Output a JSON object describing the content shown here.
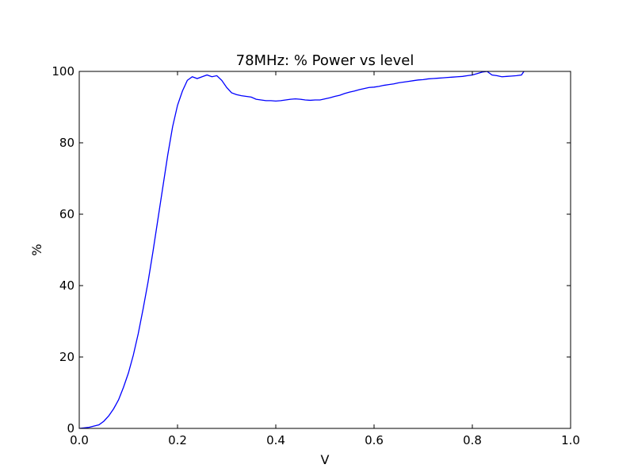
{
  "chart_data": {
    "type": "line",
    "title": "78MHz: % Power vs level",
    "xlabel": "V",
    "ylabel": "%",
    "xlim": [
      0.0,
      1.0
    ],
    "ylim": [
      0,
      100
    ],
    "xticks": [
      "0.0",
      "0.2",
      "0.4",
      "0.6",
      "0.8",
      "1.0"
    ],
    "yticks": [
      "0",
      "20",
      "40",
      "60",
      "80",
      "100"
    ],
    "grid": false,
    "line_color": "#0000ff",
    "series": [
      {
        "x": [
          0.0,
          0.02,
          0.04,
          0.05,
          0.06,
          0.07,
          0.08,
          0.09,
          0.1,
          0.11,
          0.12,
          0.13,
          0.14,
          0.15,
          0.16,
          0.17,
          0.18,
          0.19,
          0.2,
          0.21,
          0.22,
          0.23,
          0.24,
          0.25,
          0.26,
          0.27,
          0.28,
          0.29,
          0.3,
          0.31,
          0.32,
          0.33,
          0.34,
          0.35,
          0.36,
          0.37,
          0.38,
          0.39,
          0.4,
          0.41,
          0.42,
          0.43,
          0.44,
          0.45,
          0.46,
          0.47,
          0.48,
          0.49,
          0.5,
          0.51,
          0.52,
          0.53,
          0.54,
          0.55,
          0.56,
          0.57,
          0.58,
          0.59,
          0.6,
          0.61,
          0.62,
          0.63,
          0.64,
          0.65,
          0.66,
          0.67,
          0.68,
          0.69,
          0.7,
          0.71,
          0.72,
          0.73,
          0.74,
          0.75,
          0.76,
          0.77,
          0.78,
          0.79,
          0.8,
          0.81,
          0.82,
          0.83,
          0.84,
          0.85,
          0.86,
          0.87,
          0.88,
          0.89,
          0.9,
          0.905
        ],
        "y": [
          0,
          0.3,
          1.0,
          2.0,
          3.5,
          5.5,
          8.0,
          11.5,
          15.5,
          20.5,
          26.5,
          33.5,
          41.0,
          49.5,
          58.5,
          67.5,
          76.5,
          84.5,
          90.5,
          94.5,
          97.5,
          98.5,
          98.0,
          98.5,
          99.0,
          98.5,
          98.8,
          97.5,
          95.5,
          94.0,
          93.5,
          93.2,
          93.0,
          92.8,
          92.2,
          92.0,
          91.8,
          91.8,
          91.7,
          91.8,
          92.0,
          92.2,
          92.3,
          92.2,
          92.0,
          91.9,
          92.0,
          92.0,
          92.3,
          92.6,
          93.0,
          93.3,
          93.8,
          94.2,
          94.5,
          94.9,
          95.2,
          95.5,
          95.6,
          95.8,
          96.1,
          96.3,
          96.5,
          96.8,
          97.0,
          97.2,
          97.4,
          97.6,
          97.7,
          97.9,
          98.0,
          98.1,
          98.2,
          98.3,
          98.4,
          98.5,
          98.6,
          98.8,
          99.0,
          99.4,
          99.8,
          100.0,
          99.0,
          98.8,
          98.5,
          98.6,
          98.7,
          98.8,
          99.0,
          100.0
        ]
      }
    ]
  }
}
